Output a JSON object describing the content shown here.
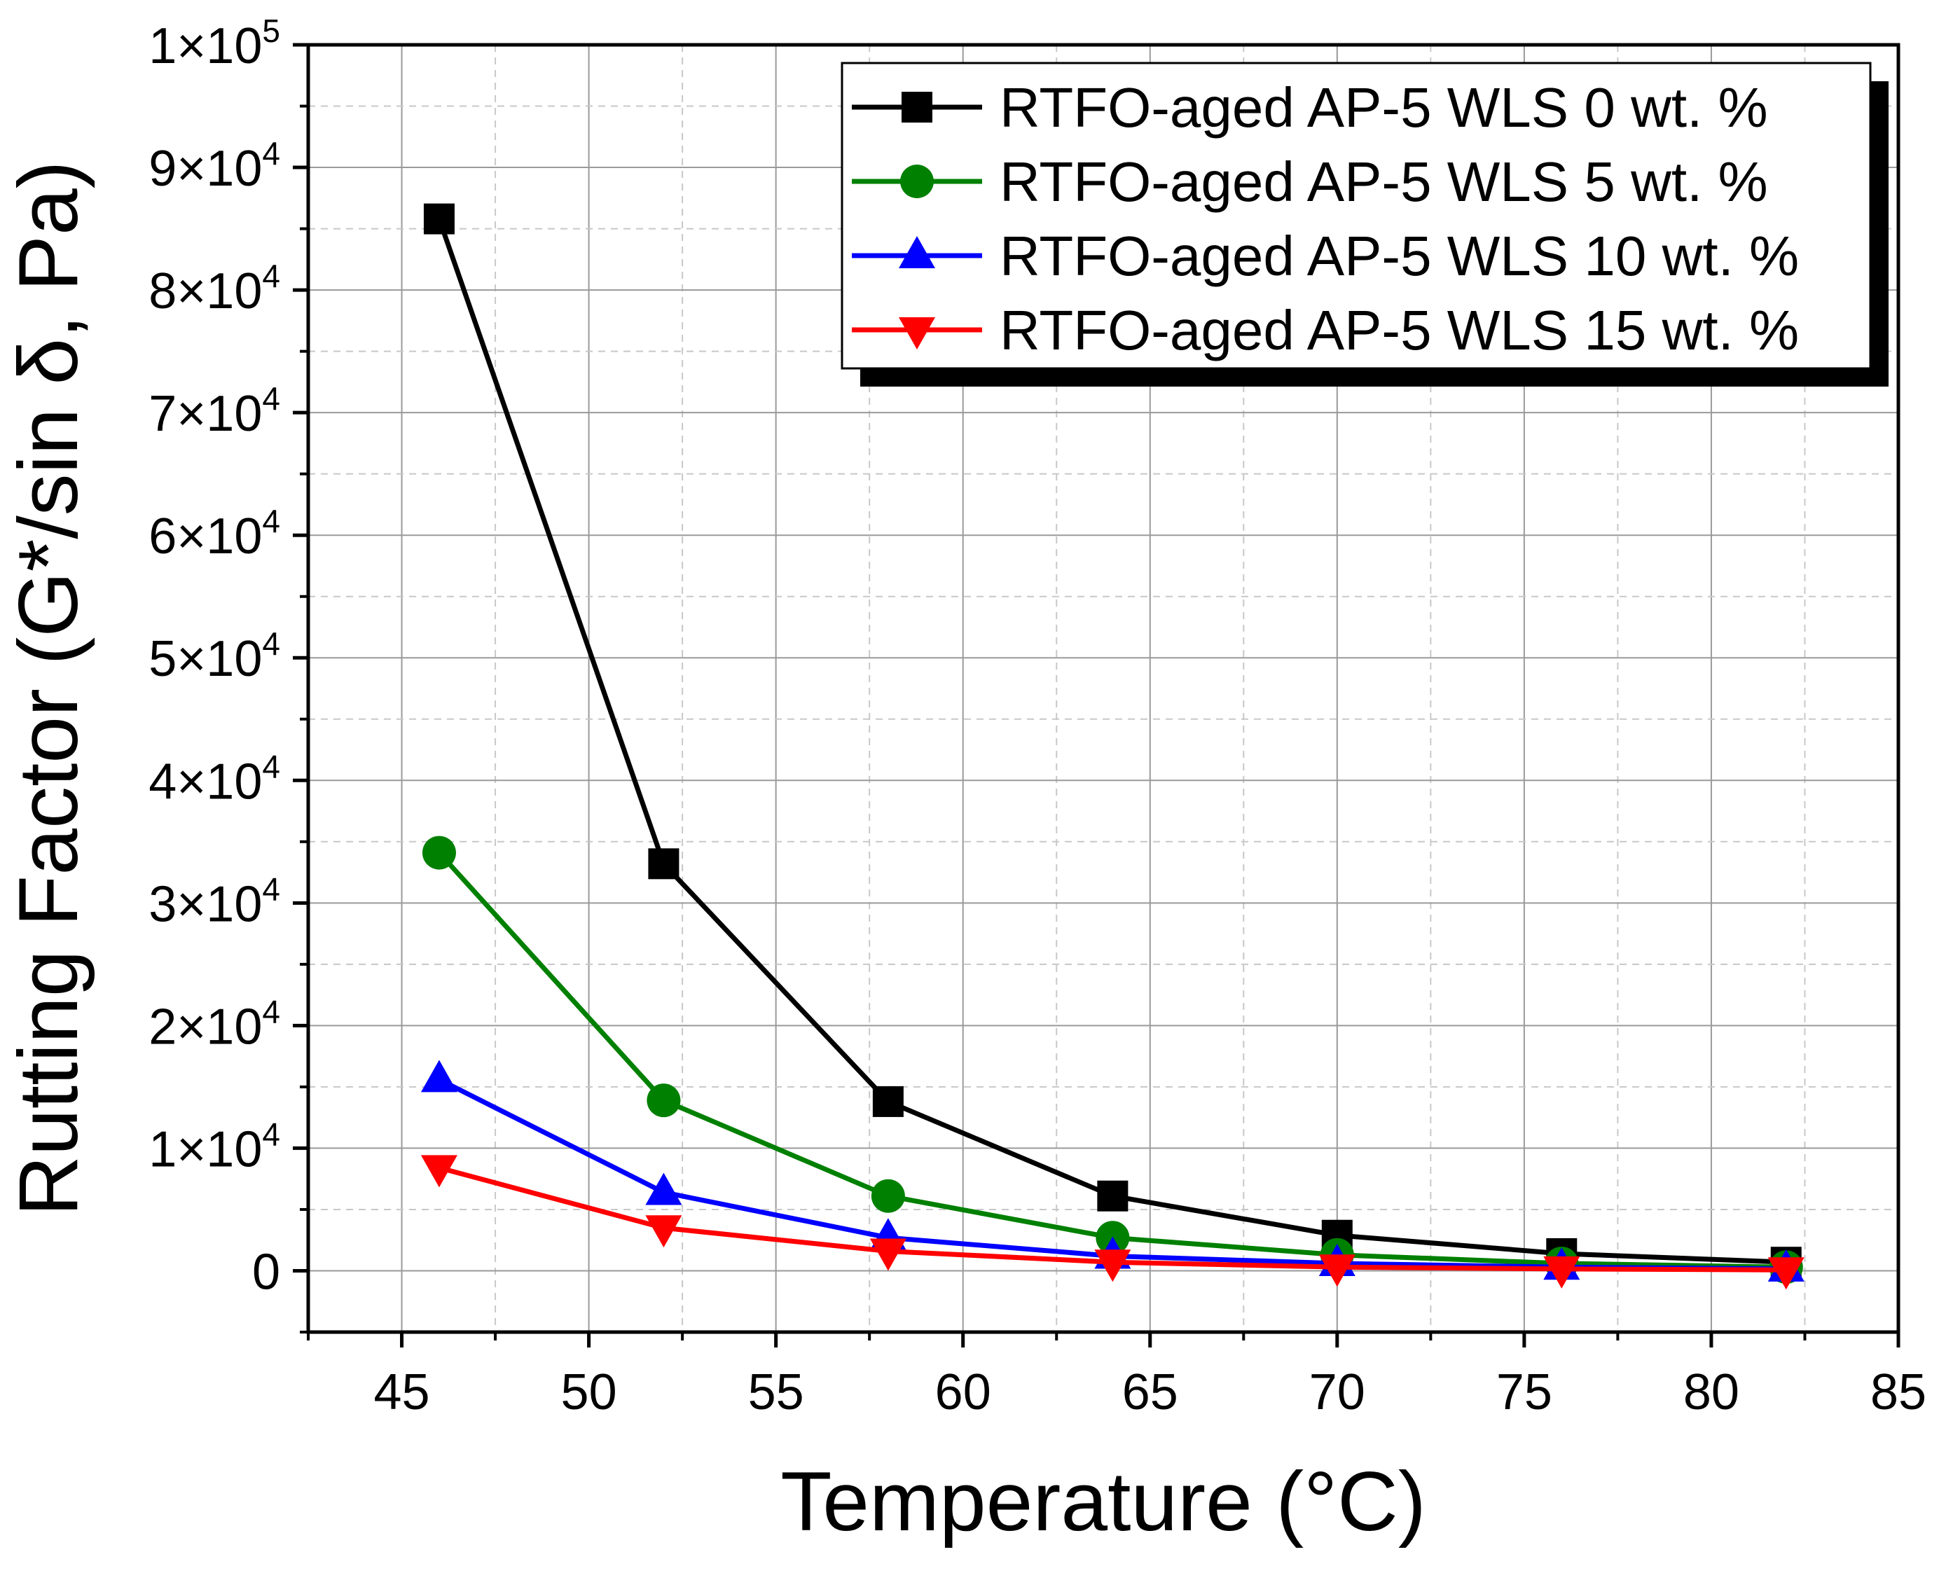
{
  "chart_data": {
    "type": "line",
    "xlabel": "Temperature (°C)",
    "ylabel": "Rutting Factor (G*/sin δ, Pa)",
    "xlim": [
      42.5,
      85
    ],
    "ylim": [
      -5000,
      100000
    ],
    "x_ticks": [
      45,
      50,
      55,
      60,
      65,
      70,
      75,
      80,
      85
    ],
    "x_tick_labels": [
      "45",
      "50",
      "55",
      "60",
      "65",
      "70",
      "75",
      "80",
      "85"
    ],
    "y_ticks": [
      {
        "value": 0,
        "mantissa": "0",
        "exponent": ""
      },
      {
        "value": 10000,
        "mantissa": "1×10",
        "exponent": "4"
      },
      {
        "value": 20000,
        "mantissa": "2×10",
        "exponent": "4"
      },
      {
        "value": 30000,
        "mantissa": "3×10",
        "exponent": "4"
      },
      {
        "value": 40000,
        "mantissa": "4×10",
        "exponent": "4"
      },
      {
        "value": 50000,
        "mantissa": "5×10",
        "exponent": "4"
      },
      {
        "value": 60000,
        "mantissa": "6×10",
        "exponent": "4"
      },
      {
        "value": 70000,
        "mantissa": "7×10",
        "exponent": "4"
      },
      {
        "value": 80000,
        "mantissa": "8×10",
        "exponent": "4"
      },
      {
        "value": 90000,
        "mantissa": "9×10",
        "exponent": "4"
      },
      {
        "value": 100000,
        "mantissa": "1×10",
        "exponent": "5"
      }
    ],
    "grid": true,
    "legend_position": "top-right",
    "x": [
      46,
      52,
      58,
      64,
      70,
      76,
      82
    ],
    "series": [
      {
        "name": "RTFO-aged AP-5 WLS 0 wt. %",
        "color": "#000000",
        "marker": "square",
        "values": [
          85800,
          33200,
          13800,
          6100,
          2900,
          1400,
          700
        ]
      },
      {
        "name": "RTFO-aged AP-5 WLS 5 wt. %",
        "color": "#008000",
        "marker": "circle",
        "values": [
          34100,
          13900,
          6100,
          2700,
          1300,
          600,
          300
        ]
      },
      {
        "name": "RTFO-aged AP-5 WLS 10 wt. %",
        "color": "#0000ff",
        "marker": "triangle-up",
        "values": [
          15600,
          6400,
          2700,
          1200,
          600,
          300,
          150
        ]
      },
      {
        "name": "RTFO-aged AP-5 WLS 15 wt. %",
        "color": "#ff0000",
        "marker": "triangle-down",
        "values": [
          8400,
          3500,
          1600,
          700,
          300,
          150,
          70
        ]
      }
    ]
  }
}
